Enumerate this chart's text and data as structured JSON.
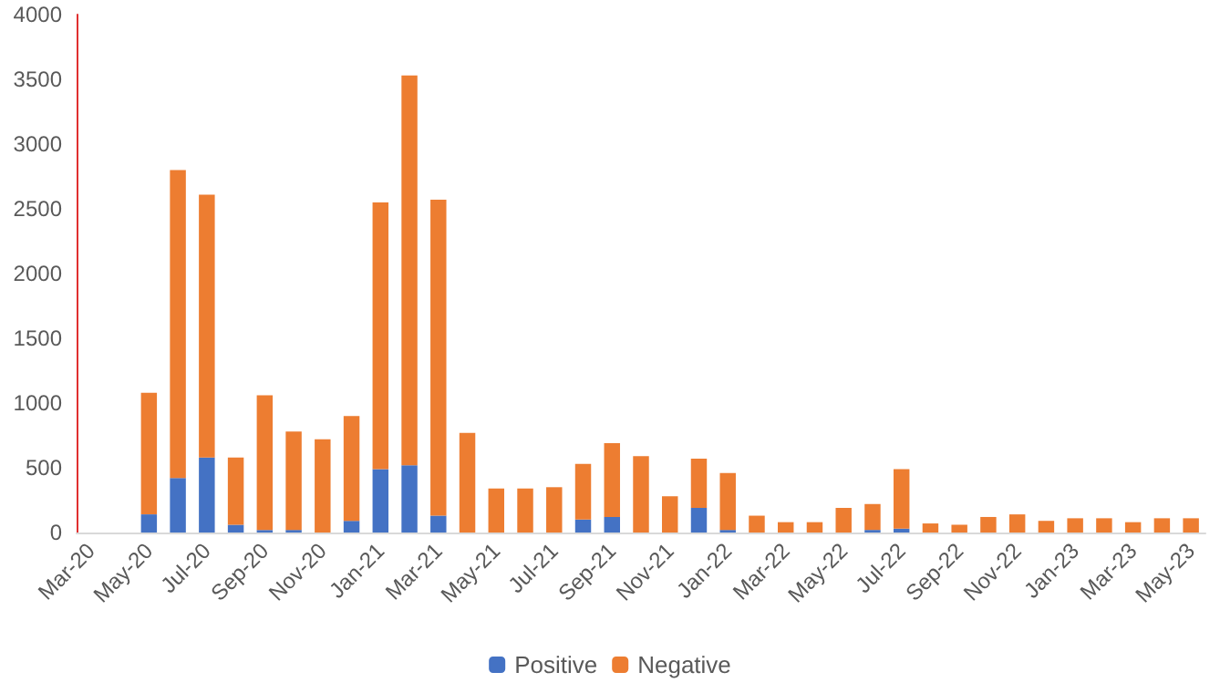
{
  "chart_data": {
    "type": "bar",
    "stacked": true,
    "categories": [
      "Mar-20",
      null,
      "May-20",
      null,
      "Jul-20",
      null,
      "Sep-20",
      null,
      "Nov-20",
      null,
      "Jan-21",
      null,
      "Mar-21",
      null,
      "May-21",
      null,
      "Jul-21",
      null,
      "Sep-21",
      null,
      "Nov-21",
      null,
      "Jan-22",
      null,
      "Mar-22",
      null,
      "May-22",
      null,
      "Jul-22",
      null,
      "Sep-22",
      null,
      "Nov-22",
      null,
      "Jan-23",
      null,
      "Mar-23",
      null,
      "May-23"
    ],
    "series": [
      {
        "name": "Positive",
        "color": "#4472c4",
        "values": [
          null,
          null,
          140,
          420,
          580,
          60,
          20,
          20,
          0,
          90,
          490,
          520,
          130,
          0,
          0,
          0,
          0,
          100,
          120,
          0,
          0,
          190,
          20,
          0,
          0,
          0,
          0,
          20,
          30,
          0,
          0,
          0,
          0,
          0,
          0,
          0,
          0,
          0,
          0
        ]
      },
      {
        "name": "Negative",
        "color": "#ed7d31",
        "values": [
          null,
          null,
          940,
          2380,
          2030,
          520,
          1040,
          760,
          720,
          810,
          2060,
          3010,
          2440,
          770,
          340,
          340,
          350,
          430,
          570,
          590,
          280,
          380,
          440,
          130,
          80,
          80,
          190,
          200,
          460,
          70,
          60,
          120,
          140,
          90,
          110,
          110,
          80,
          110,
          110
        ]
      }
    ],
    "ylim": [
      0,
      4000
    ],
    "yticks": [
      0,
      500,
      1000,
      1500,
      2000,
      2500,
      3000,
      3500,
      4000
    ],
    "grid": false,
    "legend": "bottom"
  }
}
